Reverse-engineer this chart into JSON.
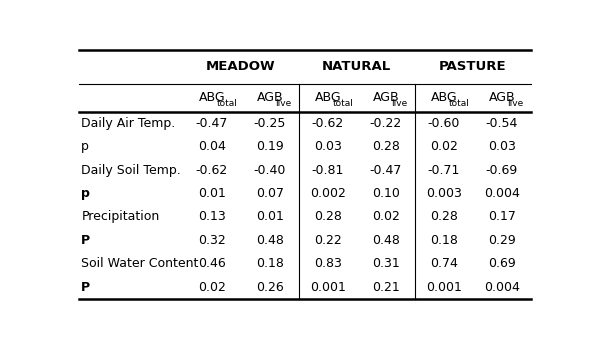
{
  "group_labels": [
    "MEADOW",
    "NATURAL",
    "PASTURE"
  ],
  "sub_col_labels": [
    [
      "ABG",
      "total"
    ],
    [
      "AGB",
      "live"
    ],
    [
      "ABG",
      "total"
    ],
    [
      "AGB",
      "live"
    ],
    [
      "ABG",
      "total"
    ],
    [
      "AGB",
      "live"
    ]
  ],
  "row_labels": [
    "Daily Air Temp.",
    "p",
    "Daily Soil Temp.",
    "p",
    "Precipitation",
    "P",
    "Soil Water Content",
    "P"
  ],
  "row_bold": [
    false,
    false,
    false,
    true,
    false,
    true,
    false,
    true
  ],
  "data": [
    [
      "-0.47",
      "-0.25",
      "-0.62",
      "-0.22",
      "-0.60",
      "-0.54"
    ],
    [
      "0.04",
      "0.19",
      "0.03",
      "0.28",
      "0.02",
      "0.03"
    ],
    [
      "-0.62",
      "-0.40",
      "-0.81",
      "-0.47",
      "-0.71",
      "-0.69"
    ],
    [
      "0.01",
      "0.07",
      "0.002",
      "0.10",
      "0.003",
      "0.004"
    ],
    [
      "0.13",
      "0.01",
      "0.28",
      "0.02",
      "0.28",
      "0.17"
    ],
    [
      "0.32",
      "0.48",
      "0.22",
      "0.48",
      "0.18",
      "0.29"
    ],
    [
      "0.46",
      "0.18",
      "0.83",
      "0.31",
      "0.74",
      "0.69"
    ],
    [
      "0.02",
      "0.26",
      "0.001",
      "0.21",
      "0.001",
      "0.004"
    ]
  ],
  "bg_color": "#ffffff",
  "font_size": 9,
  "header_font_size": 9.5
}
